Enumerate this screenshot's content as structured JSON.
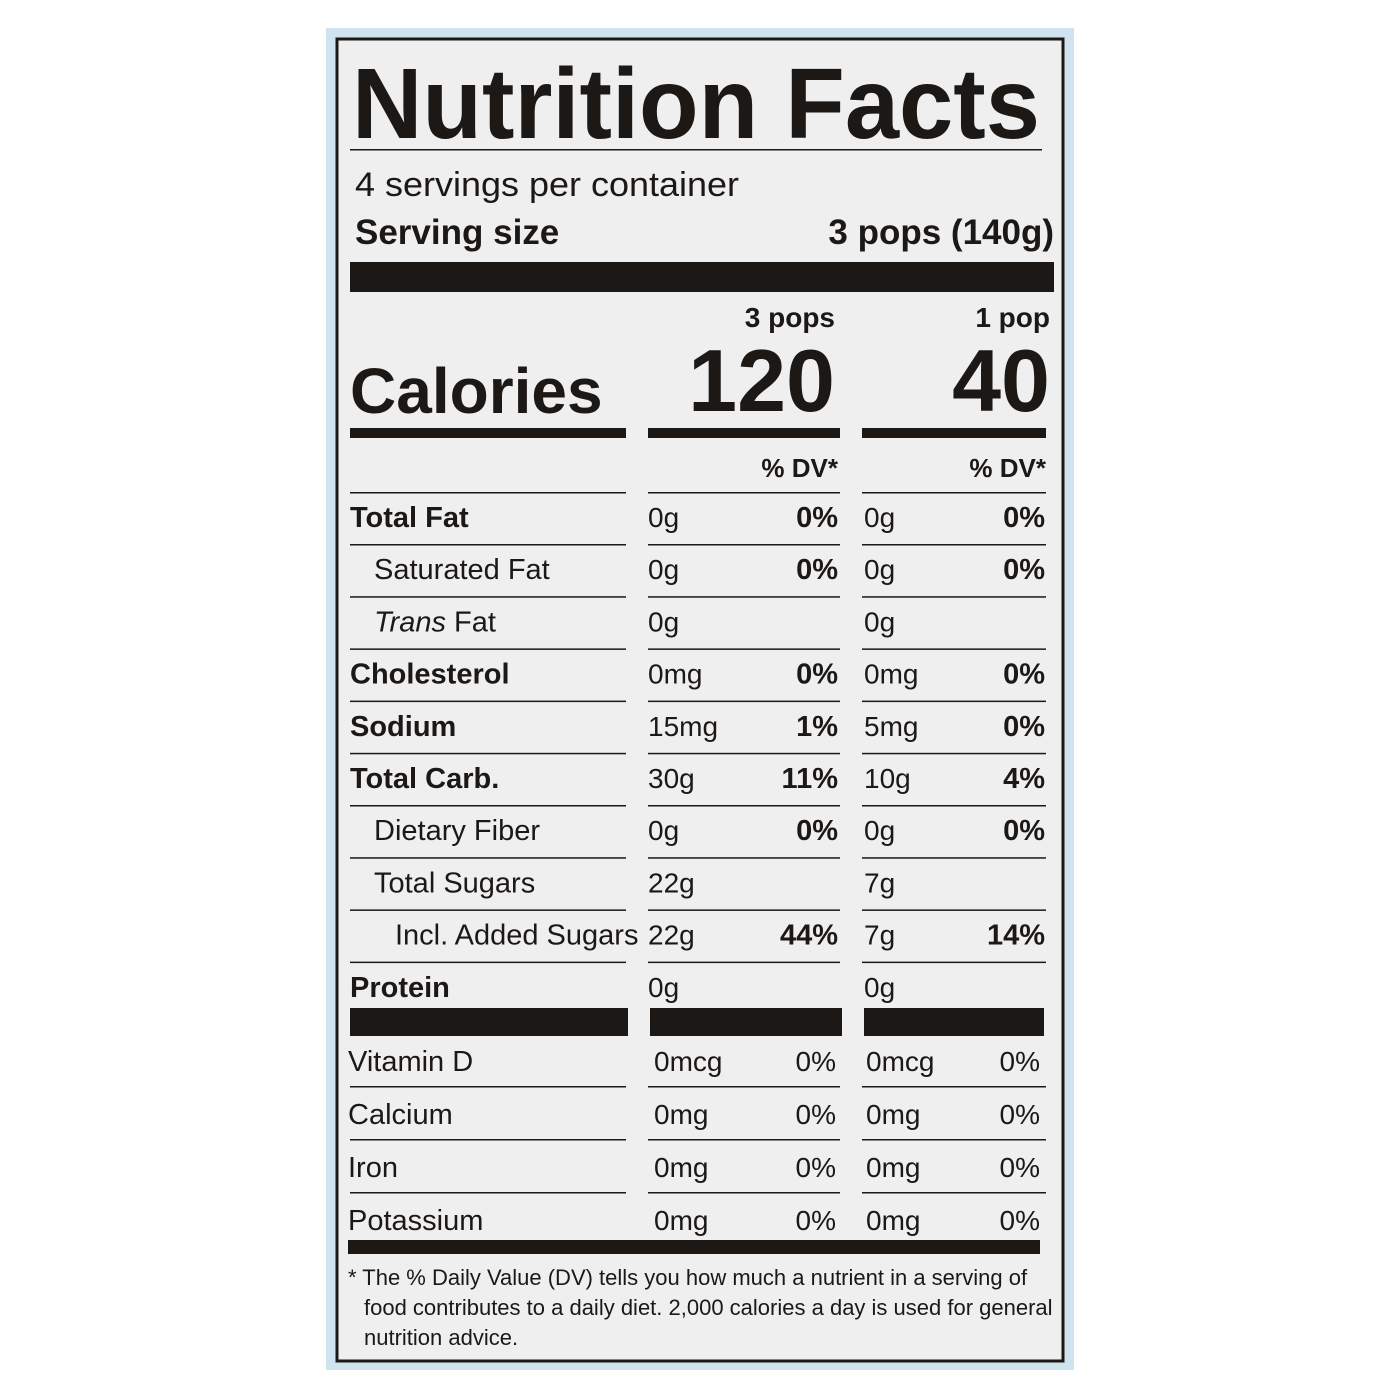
{
  "title": "Nutrition Facts",
  "servings": "4 servings per container",
  "serving_size": {
    "label": "Serving size",
    "value": "3 pops (140g)"
  },
  "columns": [
    "3 pops",
    "1 pop"
  ],
  "calories": {
    "label": "Calories",
    "values": [
      "120",
      "40"
    ]
  },
  "dv_header": [
    "% DV*",
    "% DV*"
  ],
  "nutrients": [
    {
      "label": "Total Fat",
      "cells": [
        [
          "0g",
          "0%"
        ],
        [
          "0g",
          "0%"
        ]
      ]
    },
    {
      "label": "Saturated Fat",
      "cells": [
        [
          "0g",
          "0%"
        ],
        [
          "0g",
          "0%"
        ]
      ]
    },
    {
      "label": [
        "Trans",
        "Fat"
      ],
      "cells": [
        [
          "0g"
        ],
        [
          "0g"
        ]
      ]
    },
    {
      "label": "Cholesterol",
      "cells": [
        [
          "0mg",
          "0%"
        ],
        [
          "0mg",
          "0%"
        ]
      ]
    },
    {
      "label": "Sodium",
      "cells": [
        [
          "15mg",
          "1%"
        ],
        [
          "5mg",
          "0%"
        ]
      ]
    },
    {
      "label": "Total Carb.",
      "cells": [
        [
          "30g",
          "11%"
        ],
        [
          "10g",
          "4%"
        ]
      ]
    },
    {
      "label": "Dietary Fiber",
      "cells": [
        [
          "0g",
          "0%"
        ],
        [
          "0g",
          "0%"
        ]
      ]
    },
    {
      "label": "Total Sugars",
      "cells": [
        [
          "22g"
        ],
        [
          "7g"
        ]
      ]
    },
    {
      "label": "Incl. Added Sugars",
      "cells": [
        [
          "22g",
          "44%"
        ],
        [
          "7g",
          "14%"
        ]
      ]
    },
    {
      "label": "Protein",
      "cells": [
        [
          "0g"
        ],
        [
          "0g"
        ]
      ]
    }
  ],
  "vitamins": [
    {
      "label": "Vitamin D",
      "cells": [
        [
          "0mcg",
          "0%"
        ],
        [
          "0mcg",
          "0%"
        ]
      ]
    },
    {
      "label": "Calcium",
      "cells": [
        [
          "0mg",
          "0%"
        ],
        [
          "0mg",
          "0%"
        ]
      ]
    },
    {
      "label": "Iron",
      "cells": [
        [
          "0mg",
          "0%"
        ],
        [
          "0mg",
          "0%"
        ]
      ]
    },
    {
      "label": "Potassium",
      "cells": [
        [
          "0mg",
          "0%"
        ],
        [
          "0mg",
          "0%"
        ]
      ]
    }
  ],
  "footnote": [
    "* The % Daily Value (DV) tells you how much a nutrient in a serving of",
    "food contributes to a daily diet. 2,000 calories a day is used for general",
    "nutrition advice."
  ]
}
